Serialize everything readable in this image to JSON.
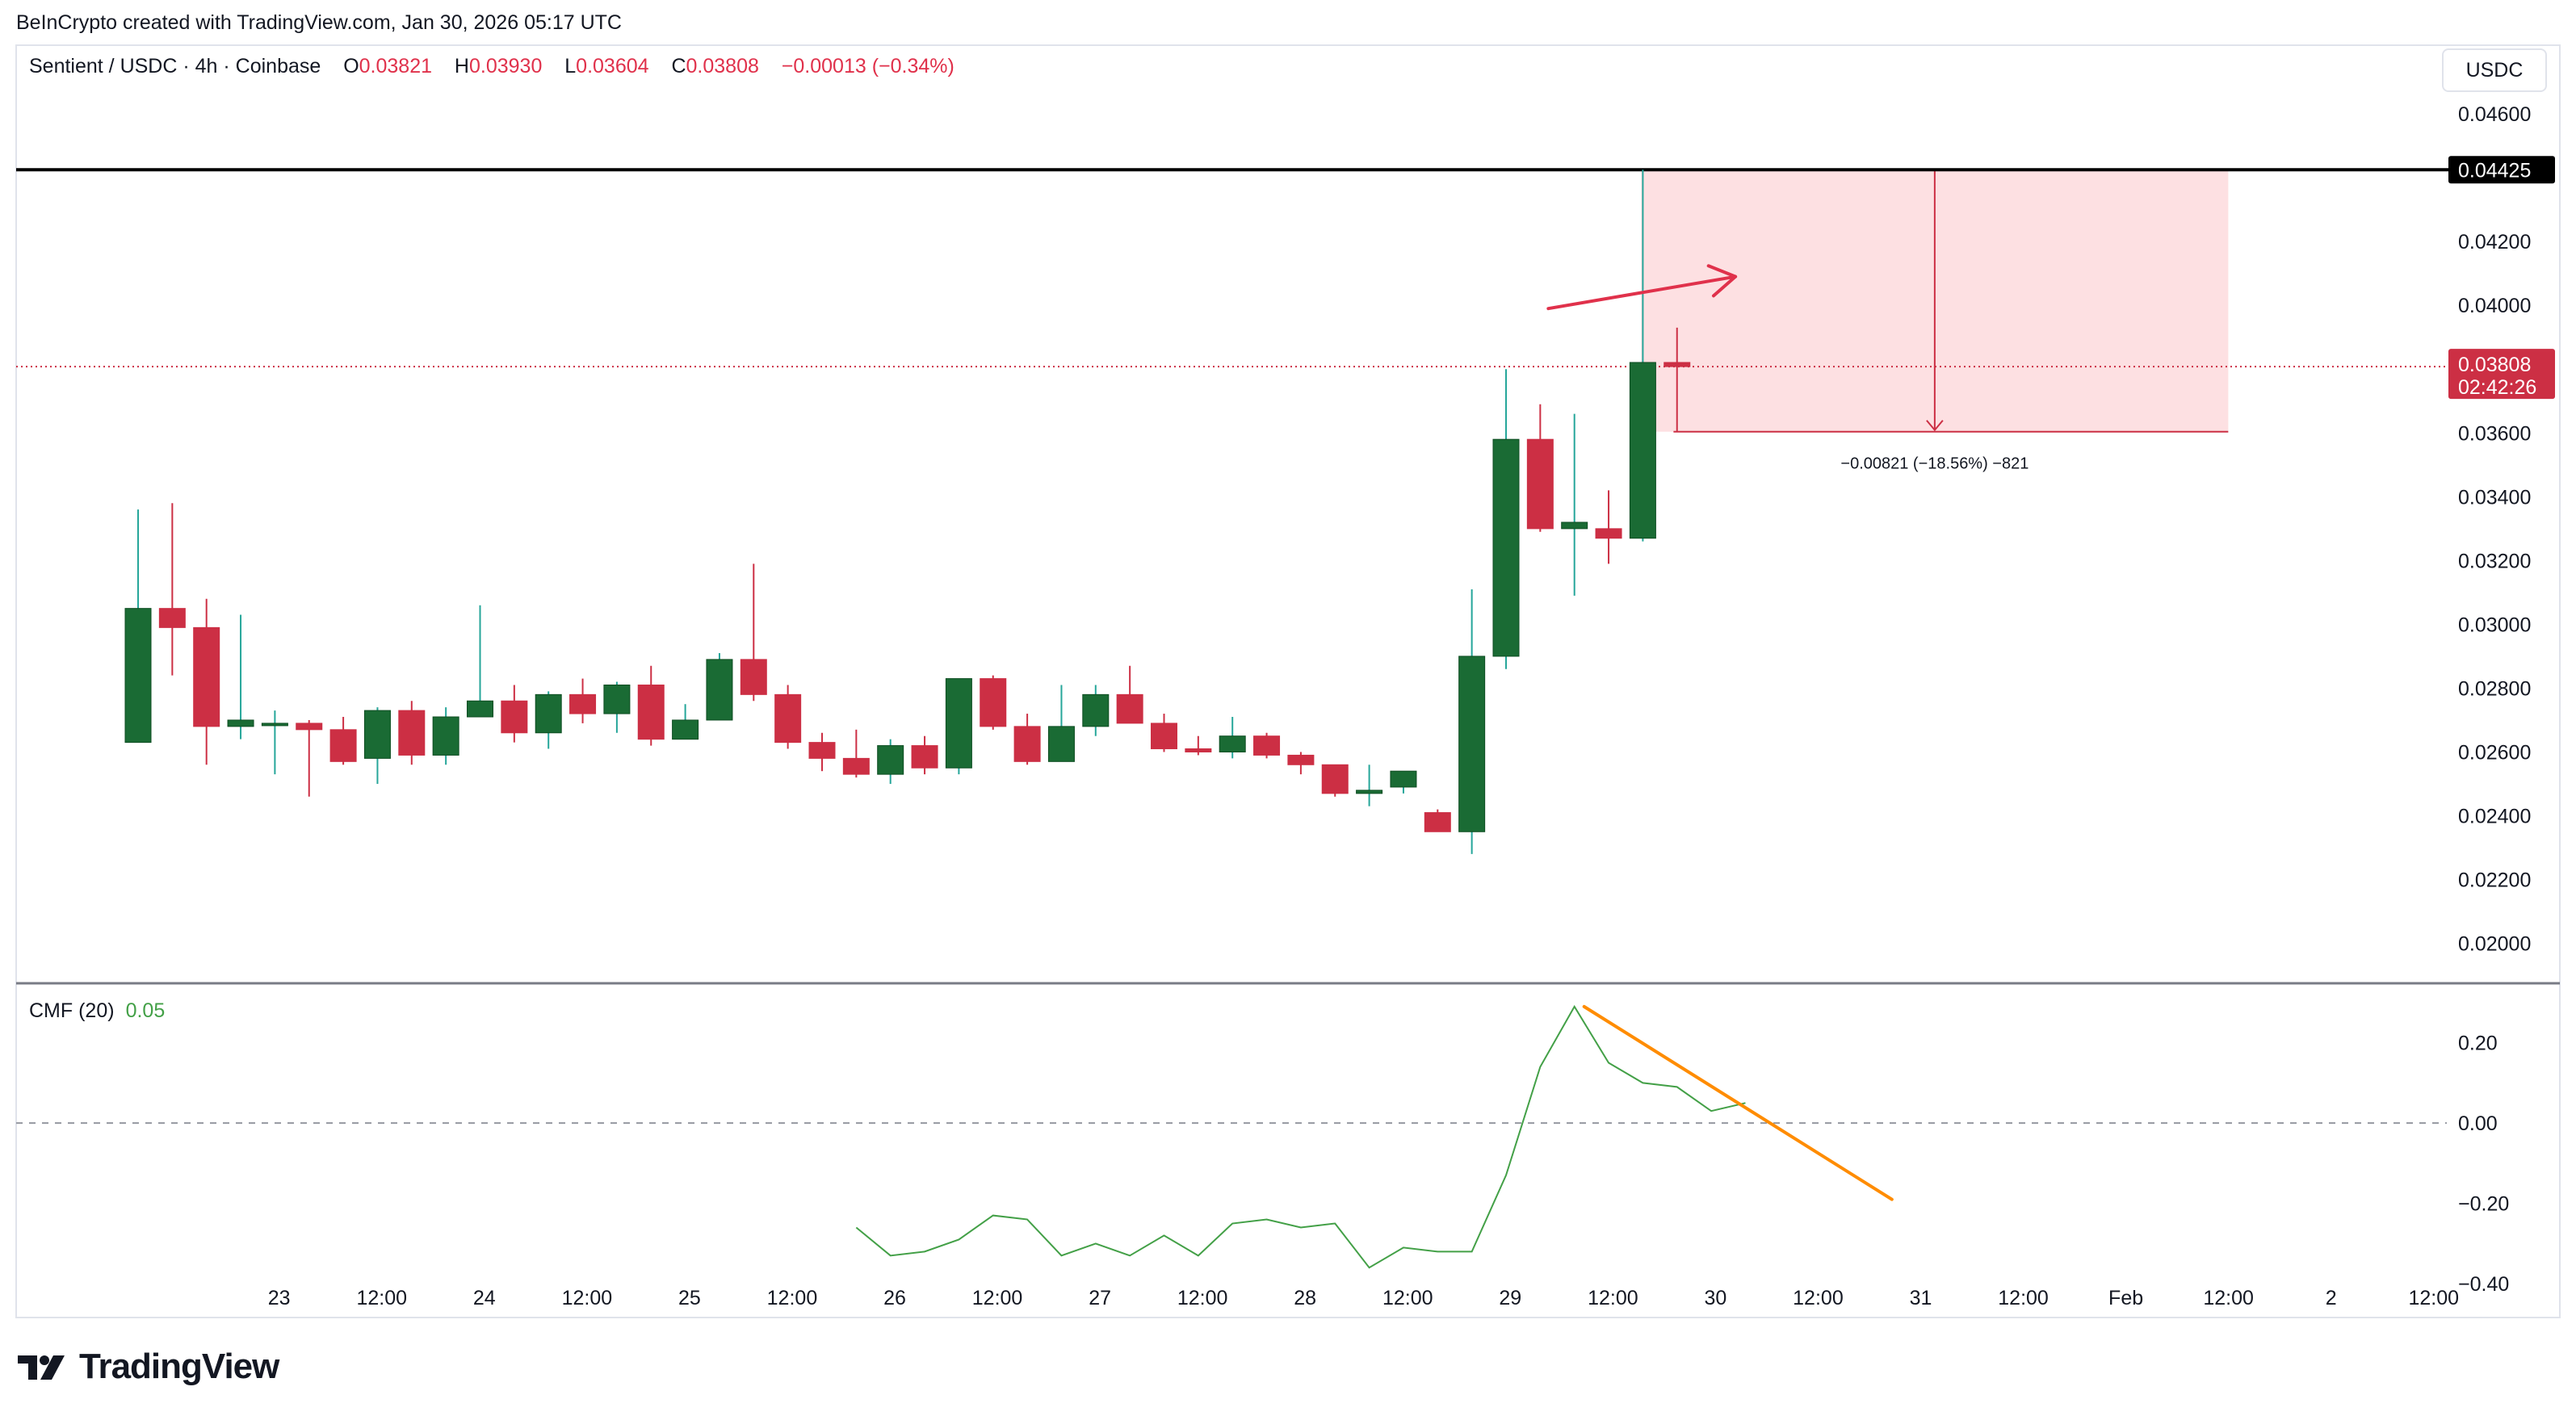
{
  "attribution": "BeInCrypto created with TradingView.com, Jan 30, 2026 05:17 UTC",
  "legend": {
    "symbol": "Sentient / USDC · 4h · Coinbase",
    "o_label": "O",
    "o_value": "0.03821",
    "h_label": "H",
    "h_value": "0.03930",
    "l_label": "L",
    "l_value": "0.03604",
    "c_label": "C",
    "c_value": "0.03808",
    "change": "−0.00013 (−0.34%)"
  },
  "currency_button": "USDC",
  "cmf_legend": {
    "label": "CMF (20)",
    "value": "0.05"
  },
  "logo_text": "TradingView",
  "colors": {
    "up": "#1a6b34",
    "up_wick": "#26a69a",
    "down": "#cc2f44",
    "zone_fill": "#fde0e2",
    "arrow": "#e0314b",
    "cmf_line": "#43a047",
    "trend_line": "#ff8c00",
    "resistance_line": "#000000"
  },
  "chart_data": [
    {
      "type": "candlestick",
      "title": "Sentient / USDC · 4h · Coinbase",
      "price_axis_unit": "USDC",
      "ylim": [
        0.0188,
        0.0478
      ],
      "price_ticks": [
        "0.02000",
        "0.02200",
        "0.02400",
        "0.02600",
        "0.02800",
        "0.03000",
        "0.03200",
        "0.03400",
        "0.03600",
        "0.03800",
        "0.04000",
        "0.04200",
        "0.04600"
      ],
      "x_ticks": [
        {
          "i": 2,
          "label": "23"
        },
        {
          "i": 5,
          "label": "12:00"
        },
        {
          "i": 8,
          "label": "24"
        },
        {
          "i": 11,
          "label": "12:00"
        },
        {
          "i": 14,
          "label": "25"
        },
        {
          "i": 17,
          "label": "12:00"
        },
        {
          "i": 20,
          "label": "26"
        },
        {
          "i": 23,
          "label": "12:00"
        },
        {
          "i": 26,
          "label": "27"
        },
        {
          "i": 29,
          "label": "12:00"
        },
        {
          "i": 32,
          "label": "28"
        },
        {
          "i": 35,
          "label": "12:00"
        },
        {
          "i": 38,
          "label": "29"
        },
        {
          "i": 41,
          "label": "12:00"
        },
        {
          "i": 44,
          "label": "30"
        },
        {
          "i": 47,
          "label": "12:00"
        },
        {
          "i": 50,
          "label": "31"
        },
        {
          "i": 53,
          "label": "12:00"
        },
        {
          "i": 56,
          "label": "Feb"
        },
        {
          "i": 59,
          "label": "12:00"
        },
        {
          "i": 62,
          "label": "2"
        },
        {
          "i": 65,
          "label": "12:00"
        }
      ],
      "candles": [
        {
          "o": 0.0263,
          "h": 0.0336,
          "l": 0.0263,
          "c": 0.0305
        },
        {
          "o": 0.0305,
          "h": 0.0338,
          "l": 0.0284,
          "c": 0.0299
        },
        {
          "o": 0.0299,
          "h": 0.0308,
          "l": 0.0256,
          "c": 0.0268
        },
        {
          "o": 0.0268,
          "h": 0.0303,
          "l": 0.0264,
          "c": 0.027
        },
        {
          "o": 0.0269,
          "h": 0.0273,
          "l": 0.0253,
          "c": 0.0269
        },
        {
          "o": 0.0269,
          "h": 0.027,
          "l": 0.0246,
          "c": 0.0267
        },
        {
          "o": 0.0267,
          "h": 0.0271,
          "l": 0.0256,
          "c": 0.0257
        },
        {
          "o": 0.0258,
          "h": 0.0274,
          "l": 0.025,
          "c": 0.0273
        },
        {
          "o": 0.0273,
          "h": 0.0276,
          "l": 0.0256,
          "c": 0.0259
        },
        {
          "o": 0.0259,
          "h": 0.0274,
          "l": 0.0256,
          "c": 0.0271
        },
        {
          "o": 0.0271,
          "h": 0.0306,
          "l": 0.0271,
          "c": 0.0276
        },
        {
          "o": 0.0276,
          "h": 0.0281,
          "l": 0.0263,
          "c": 0.0266
        },
        {
          "o": 0.0266,
          "h": 0.0279,
          "l": 0.0261,
          "c": 0.0278
        },
        {
          "o": 0.0278,
          "h": 0.0283,
          "l": 0.0269,
          "c": 0.0272
        },
        {
          "o": 0.0272,
          "h": 0.0282,
          "l": 0.0266,
          "c": 0.0281
        },
        {
          "o": 0.0281,
          "h": 0.0287,
          "l": 0.0262,
          "c": 0.0264
        },
        {
          "o": 0.0264,
          "h": 0.0275,
          "l": 0.0264,
          "c": 0.027
        },
        {
          "o": 0.027,
          "h": 0.0291,
          "l": 0.027,
          "c": 0.0289
        },
        {
          "o": 0.0289,
          "h": 0.0319,
          "l": 0.0276,
          "c": 0.0278
        },
        {
          "o": 0.0278,
          "h": 0.0281,
          "l": 0.0261,
          "c": 0.0263
        },
        {
          "o": 0.0263,
          "h": 0.0266,
          "l": 0.0254,
          "c": 0.0258
        },
        {
          "o": 0.0258,
          "h": 0.0267,
          "l": 0.0252,
          "c": 0.0253
        },
        {
          "o": 0.0253,
          "h": 0.0264,
          "l": 0.025,
          "c": 0.0262
        },
        {
          "o": 0.0262,
          "h": 0.0265,
          "l": 0.0253,
          "c": 0.0255
        },
        {
          "o": 0.0255,
          "h": 0.0283,
          "l": 0.0253,
          "c": 0.0283
        },
        {
          "o": 0.0283,
          "h": 0.0284,
          "l": 0.0267,
          "c": 0.0268
        },
        {
          "o": 0.0268,
          "h": 0.0272,
          "l": 0.0256,
          "c": 0.0257
        },
        {
          "o": 0.0257,
          "h": 0.0281,
          "l": 0.0257,
          "c": 0.0268
        },
        {
          "o": 0.0268,
          "h": 0.0281,
          "l": 0.0265,
          "c": 0.0278
        },
        {
          "o": 0.0278,
          "h": 0.0287,
          "l": 0.0269,
          "c": 0.0269
        },
        {
          "o": 0.0269,
          "h": 0.0272,
          "l": 0.026,
          "c": 0.0261
        },
        {
          "o": 0.0261,
          "h": 0.0265,
          "l": 0.0259,
          "c": 0.026
        },
        {
          "o": 0.026,
          "h": 0.0271,
          "l": 0.0258,
          "c": 0.0265
        },
        {
          "o": 0.0265,
          "h": 0.0266,
          "l": 0.0258,
          "c": 0.0259
        },
        {
          "o": 0.0259,
          "h": 0.026,
          "l": 0.0253,
          "c": 0.0256
        },
        {
          "o": 0.0256,
          "h": 0.0256,
          "l": 0.0246,
          "c": 0.0247
        },
        {
          "o": 0.0247,
          "h": 0.0256,
          "l": 0.0243,
          "c": 0.0248
        },
        {
          "o": 0.0249,
          "h": 0.0254,
          "l": 0.0247,
          "c": 0.0254
        },
        {
          "o": 0.0241,
          "h": 0.0242,
          "l": 0.0235,
          "c": 0.0235
        },
        {
          "o": 0.0235,
          "h": 0.0311,
          "l": 0.0228,
          "c": 0.029
        },
        {
          "o": 0.029,
          "h": 0.038,
          "l": 0.0286,
          "c": 0.0358
        },
        {
          "o": 0.0358,
          "h": 0.0369,
          "l": 0.0329,
          "c": 0.033
        },
        {
          "o": 0.033,
          "h": 0.0366,
          "l": 0.0309,
          "c": 0.0332
        },
        {
          "o": 0.033,
          "h": 0.0342,
          "l": 0.0319,
          "c": 0.0327
        },
        {
          "o": 0.0327,
          "h": 0.04425,
          "l": 0.0326,
          "c": 0.03821
        },
        {
          "o": 0.03821,
          "h": 0.0393,
          "l": 0.03604,
          "c": 0.03808
        }
      ],
      "resistance_level": 0.04425,
      "resistance_label": "0.04425",
      "current_price_label": "0.03808",
      "countdown_label": "02:42:26",
      "measure_zone": {
        "top": 0.04425,
        "bottom": 0.03604,
        "start_i": 44,
        "end_i": 61
      },
      "measure_label": "−0.00821 (−18.56%) −821",
      "price_arrow": {
        "from": {
          "i": 41,
          "v": 0.0399
        },
        "to": {
          "i": 46,
          "v": 0.0409
        }
      }
    },
    {
      "type": "line",
      "title": "CMF (20)",
      "ylim": [
        -0.46,
        0.34
      ],
      "y_ticks": [
        "0.20",
        "0.00",
        "−0.20",
        "−0.40"
      ],
      "y_tick_values": [
        0.2,
        0.0,
        -0.2,
        -0.4
      ],
      "zero_line": 0.0,
      "start_i": 21,
      "values": [
        -0.26,
        -0.33,
        -0.32,
        -0.29,
        -0.23,
        -0.24,
        -0.33,
        -0.3,
        -0.33,
        -0.28,
        -0.33,
        -0.25,
        -0.24,
        -0.26,
        -0.25,
        -0.36,
        -0.31,
        -0.32,
        -0.32,
        -0.13,
        0.14,
        0.29,
        0.15,
        0.1,
        0.09,
        0.03,
        0.05
      ],
      "trend_line": {
        "from": {
          "i": 42,
          "v": 0.29
        },
        "to": {
          "i": 51,
          "v": -0.19
        }
      }
    }
  ]
}
